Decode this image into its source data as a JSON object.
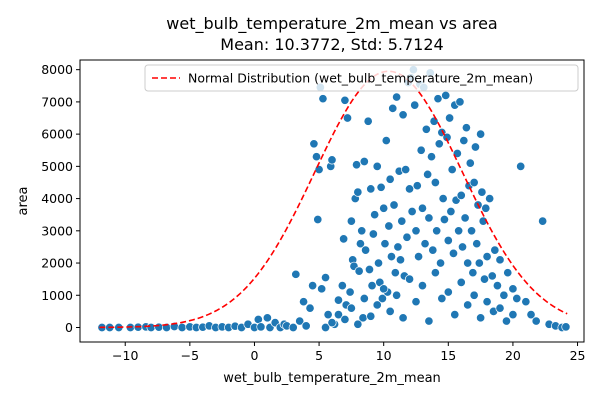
{
  "chart_data": {
    "type": "scatter",
    "title_line1": "wet_bulb_temperature_2m_mean vs area",
    "title_line2": "Mean: 10.3772, Std: 5.7124",
    "xlabel": "wet_bulb_temperature_2m_mean",
    "ylabel": "area",
    "xlim": [
      -13.5,
      25.5
    ],
    "ylim": [
      -450,
      8300
    ],
    "xticks": [
      -10,
      -5,
      0,
      5,
      10,
      15,
      20,
      25
    ],
    "yticks": [
      0,
      1000,
      2000,
      3000,
      4000,
      5000,
      6000,
      7000,
      8000
    ],
    "grid": false,
    "legend_position": "top-right",
    "colors": {
      "points": "#1f77b4",
      "curve": "#ff0000"
    },
    "series": [
      {
        "name": "Normal Distribution (wet_bulb_temperature_2m_mean)",
        "kind": "line",
        "mean": 10.3772,
        "std": 5.7124,
        "peak": 7950
      }
    ],
    "points": [
      [
        -11.8,
        0
      ],
      [
        -11.2,
        0
      ],
      [
        -10.5,
        0
      ],
      [
        -9.6,
        0
      ],
      [
        -9.0,
        10
      ],
      [
        -8.4,
        20
      ],
      [
        -8.0,
        0
      ],
      [
        -7.4,
        10
      ],
      [
        -6.8,
        0
      ],
      [
        -6.2,
        30
      ],
      [
        -5.6,
        0
      ],
      [
        -5.0,
        20
      ],
      [
        -4.5,
        0
      ],
      [
        -4.0,
        10
      ],
      [
        -3.5,
        50
      ],
      [
        -3.0,
        0
      ],
      [
        -2.5,
        20
      ],
      [
        -2.0,
        0
      ],
      [
        -1.5,
        40
      ],
      [
        -1.0,
        0
      ],
      [
        -0.5,
        100
      ],
      [
        0.0,
        0
      ],
      [
        0.3,
        250
      ],
      [
        0.5,
        20
      ],
      [
        1.0,
        300
      ],
      [
        1.2,
        0
      ],
      [
        1.6,
        150
      ],
      [
        2.0,
        0
      ],
      [
        2.3,
        100
      ],
      [
        2.5,
        50
      ],
      [
        3.0,
        0
      ],
      [
        3.2,
        1650
      ],
      [
        3.5,
        200
      ],
      [
        3.8,
        800
      ],
      [
        4.0,
        50
      ],
      [
        4.3,
        600
      ],
      [
        4.5,
        1300
      ],
      [
        4.6,
        5700
      ],
      [
        4.8,
        5300
      ],
      [
        4.9,
        3350
      ],
      [
        5.0,
        4900
      ],
      [
        5.1,
        7450
      ],
      [
        5.2,
        1200
      ],
      [
        5.3,
        7100
      ],
      [
        5.5,
        1550
      ],
      [
        5.7,
        400
      ],
      [
        5.9,
        5000
      ],
      [
        6.0,
        5200
      ],
      [
        6.2,
        100
      ],
      [
        6.5,
        850
      ],
      [
        6.8,
        1300
      ],
      [
        6.9,
        2750
      ],
      [
        7.0,
        7050
      ],
      [
        7.1,
        700
      ],
      [
        7.2,
        6500
      ],
      [
        7.4,
        1100
      ],
      [
        7.5,
        3300
      ],
      [
        7.6,
        2100
      ],
      [
        7.7,
        1900
      ],
      [
        7.8,
        4000
      ],
      [
        7.9,
        5050
      ],
      [
        8.0,
        4200
      ],
      [
        8.1,
        1750
      ],
      [
        8.2,
        2600
      ],
      [
        8.3,
        3000
      ],
      [
        8.4,
        300
      ],
      [
        8.5,
        5150
      ],
      [
        8.6,
        2400
      ],
      [
        8.8,
        6400
      ],
      [
        8.9,
        1800
      ],
      [
        9.0,
        4300
      ],
      [
        9.1,
        1300
      ],
      [
        9.2,
        2900
      ],
      [
        9.3,
        3500
      ],
      [
        9.5,
        5000
      ],
      [
        9.6,
        2000
      ],
      [
        9.7,
        1400
      ],
      [
        9.8,
        4350
      ],
      [
        9.9,
        900
      ],
      [
        10.0,
        3700
      ],
      [
        10.1,
        2600
      ],
      [
        10.2,
        5800
      ],
      [
        10.3,
        1100
      ],
      [
        10.4,
        3150
      ],
      [
        10.5,
        4600
      ],
      [
        10.6,
        2200
      ],
      [
        10.7,
        6800
      ],
      [
        10.8,
        3800
      ],
      [
        10.9,
        1700
      ],
      [
        11.0,
        7150
      ],
      [
        11.1,
        2500
      ],
      [
        11.2,
        4850
      ],
      [
        11.3,
        2100
      ],
      [
        11.4,
        3300
      ],
      [
        11.5,
        6600
      ],
      [
        11.6,
        1600
      ],
      [
        11.7,
        4900
      ],
      [
        11.8,
        2800
      ],
      [
        11.9,
        7600
      ],
      [
        12.0,
        4300
      ],
      [
        12.1,
        7750
      ],
      [
        12.2,
        3600
      ],
      [
        12.3,
        8000
      ],
      [
        12.4,
        6900
      ],
      [
        12.5,
        3000
      ],
      [
        12.6,
        4400
      ],
      [
        12.7,
        2200
      ],
      [
        12.8,
        7550
      ],
      [
        12.9,
        5500
      ],
      [
        13.0,
        3700
      ],
      [
        13.1,
        7450
      ],
      [
        13.2,
        2600
      ],
      [
        13.3,
        6150
      ],
      [
        13.4,
        4750
      ],
      [
        13.5,
        3400
      ],
      [
        13.6,
        7900
      ],
      [
        13.7,
        5300
      ],
      [
        13.8,
        2400
      ],
      [
        13.9,
        6400
      ],
      [
        14.0,
        4500
      ],
      [
        14.1,
        3000
      ],
      [
        14.2,
        7100
      ],
      [
        14.3,
        5700
      ],
      [
        14.4,
        2000
      ],
      [
        14.5,
        6050
      ],
      [
        14.6,
        4000
      ],
      [
        14.7,
        3350
      ],
      [
        14.8,
        7200
      ],
      [
        14.9,
        5900
      ],
      [
        15.0,
        2700
      ],
      [
        15.1,
        6500
      ],
      [
        15.2,
        3600
      ],
      [
        15.3,
        4900
      ],
      [
        15.4,
        2300
      ],
      [
        15.5,
        6900
      ],
      [
        15.6,
        3950
      ],
      [
        15.7,
        5400
      ],
      [
        15.8,
        3000
      ],
      [
        15.9,
        7000
      ],
      [
        16.0,
        4100
      ],
      [
        16.1,
        2500
      ],
      [
        16.2,
        5800
      ],
      [
        16.3,
        3400
      ],
      [
        16.4,
        6200
      ],
      [
        16.5,
        2000
      ],
      [
        16.6,
        4400
      ],
      [
        16.7,
        5100
      ],
      [
        16.8,
        3000
      ],
      [
        16.9,
        1700
      ],
      [
        17.0,
        4500
      ],
      [
        17.1,
        5600
      ],
      [
        17.2,
        2600
      ],
      [
        17.3,
        3800
      ],
      [
        17.4,
        2000
      ],
      [
        17.5,
        6000
      ],
      [
        17.6,
        4200
      ],
      [
        17.7,
        3300
      ],
      [
        17.8,
        1500
      ],
      [
        17.9,
        3700
      ],
      [
        18.0,
        2200
      ],
      [
        18.2,
        4000
      ],
      [
        18.4,
        1600
      ],
      [
        18.6,
        2400
      ],
      [
        18.8,
        1300
      ],
      [
        19.0,
        2100
      ],
      [
        19.3,
        1000
      ],
      [
        19.6,
        1700
      ],
      [
        20.0,
        1200
      ],
      [
        20.3,
        900
      ],
      [
        20.6,
        5000
      ],
      [
        21.0,
        800
      ],
      [
        21.4,
        400
      ],
      [
        21.8,
        200
      ],
      [
        22.3,
        3300
      ],
      [
        22.8,
        100
      ],
      [
        23.3,
        50
      ],
      [
        23.8,
        0
      ],
      [
        24.1,
        20
      ],
      [
        5.5,
        0
      ],
      [
        6.0,
        150
      ],
      [
        6.5,
        400
      ],
      [
        7.0,
        250
      ],
      [
        7.5,
        600
      ],
      [
        8.0,
        100
      ],
      [
        8.5,
        900
      ],
      [
        9.0,
        350
      ],
      [
        9.5,
        700
      ],
      [
        10.0,
        1200
      ],
      [
        10.5,
        500
      ],
      [
        11.0,
        1000
      ],
      [
        11.5,
        300
      ],
      [
        12.0,
        1500
      ],
      [
        12.5,
        800
      ],
      [
        13.0,
        1300
      ],
      [
        13.5,
        200
      ],
      [
        14.0,
        1700
      ],
      [
        14.5,
        900
      ],
      [
        15.0,
        1100
      ],
      [
        15.5,
        400
      ],
      [
        16.0,
        1400
      ],
      [
        16.5,
        700
      ],
      [
        17.0,
        1000
      ],
      [
        17.5,
        300
      ],
      [
        18.0,
        800
      ],
      [
        18.5,
        500
      ],
      [
        19.0,
        600
      ],
      [
        19.5,
        200
      ],
      [
        20.0,
        400
      ]
    ]
  }
}
